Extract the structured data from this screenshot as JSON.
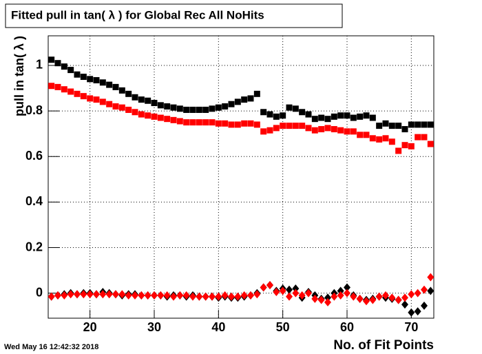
{
  "chart_data": {
    "type": "scatter",
    "title": "Fitted pull in tan( λ ) for Global Rec All NoHits",
    "x_label": "No. of Fit Points",
    "y_label": "pull in tan( λ )",
    "timestamp": "Wed May 16 12:42:32 2018",
    "x": [
      14,
      15,
      16,
      17,
      18,
      19,
      20,
      21,
      22,
      23,
      24,
      25,
      26,
      27,
      28,
      29,
      30,
      31,
      32,
      33,
      34,
      35,
      36,
      37,
      38,
      39,
      40,
      41,
      42,
      43,
      44,
      45,
      46,
      47,
      48,
      49,
      50,
      51,
      52,
      53,
      54,
      55,
      56,
      57,
      58,
      59,
      60,
      61,
      62,
      63,
      64,
      65,
      66,
      67,
      68,
      69,
      70,
      71,
      72,
      73
    ],
    "series": [
      {
        "color": "#000000",
        "marker": "square",
        "values": [
          1.025,
          1.01,
          0.995,
          0.98,
          0.96,
          0.95,
          0.94,
          0.935,
          0.925,
          0.915,
          0.905,
          0.89,
          0.875,
          0.86,
          0.85,
          0.845,
          0.835,
          0.825,
          0.82,
          0.815,
          0.81,
          0.805,
          0.805,
          0.805,
          0.805,
          0.81,
          0.815,
          0.82,
          0.83,
          0.84,
          0.85,
          0.855,
          0.875,
          0.795,
          0.785,
          0.775,
          0.78,
          0.815,
          0.81,
          0.795,
          0.785,
          0.765,
          0.77,
          0.765,
          0.775,
          0.78,
          0.78,
          0.77,
          0.775,
          0.78,
          0.77,
          0.735,
          0.745,
          0.735,
          0.735,
          0.72,
          0.74,
          0.74,
          0.74,
          0.74
        ]
      },
      {
        "color": "#ff0000",
        "marker": "square",
        "values": [
          0.91,
          0.905,
          0.895,
          0.885,
          0.875,
          0.865,
          0.855,
          0.85,
          0.84,
          0.83,
          0.82,
          0.815,
          0.805,
          0.795,
          0.785,
          0.78,
          0.775,
          0.77,
          0.765,
          0.76,
          0.755,
          0.75,
          0.75,
          0.75,
          0.75,
          0.75,
          0.745,
          0.745,
          0.74,
          0.74,
          0.745,
          0.745,
          0.74,
          0.71,
          0.715,
          0.725,
          0.735,
          0.735,
          0.735,
          0.735,
          0.725,
          0.715,
          0.72,
          0.725,
          0.72,
          0.715,
          0.71,
          0.71,
          0.695,
          0.695,
          0.68,
          0.675,
          0.68,
          0.665,
          0.625,
          0.65,
          0.645,
          0.685,
          0.685,
          0.655
        ]
      },
      {
        "color": "#000000",
        "marker": "diamond",
        "values": [
          -0.015,
          -0.01,
          -0.005,
          0,
          -0.005,
          0,
          0,
          -0.005,
          0.005,
          0,
          -0.005,
          -0.01,
          -0.005,
          -0.005,
          -0.01,
          -0.01,
          -0.01,
          -0.01,
          -0.015,
          -0.01,
          -0.01,
          -0.015,
          -0.01,
          -0.015,
          -0.015,
          -0.015,
          -0.02,
          -0.015,
          -0.02,
          -0.02,
          -0.015,
          -0.01,
          0,
          0.025,
          0.035,
          0.01,
          0.02,
          0.015,
          0.02,
          -0.02,
          0.005,
          -0.01,
          -0.025,
          -0.02,
          0,
          0.01,
          0.025,
          -0.01,
          -0.025,
          -0.03,
          -0.025,
          -0.015,
          -0.02,
          -0.025,
          -0.03,
          -0.05,
          -0.085,
          -0.08,
          -0.055,
          0.01
        ]
      },
      {
        "color": "#ff0000",
        "marker": "diamond",
        "values": [
          -0.015,
          -0.01,
          -0.01,
          -0.005,
          -0.005,
          -0.005,
          -0.005,
          -0.005,
          -0.005,
          -0.005,
          -0.005,
          -0.005,
          -0.01,
          -0.01,
          -0.01,
          -0.01,
          -0.01,
          -0.01,
          -0.01,
          -0.015,
          -0.01,
          -0.01,
          -0.015,
          -0.015,
          -0.015,
          -0.015,
          -0.015,
          -0.01,
          -0.015,
          -0.015,
          -0.01,
          -0.01,
          -0.005,
          0.025,
          0.035,
          0.005,
          0.01,
          -0.015,
          0,
          -0.01,
          0,
          -0.025,
          -0.03,
          -0.04,
          -0.015,
          -0.01,
          0,
          -0.015,
          -0.025,
          -0.035,
          -0.03,
          -0.015,
          -0.01,
          -0.02,
          -0.03,
          -0.02,
          -0.005,
          0,
          0.015,
          0.07
        ]
      }
    ],
    "xlim": [
      13.5,
      73.5
    ],
    "ylim": [
      -0.11,
      1.13
    ],
    "xticks": [
      20,
      30,
      40,
      50,
      60,
      70
    ],
    "yticks": [
      0,
      0.2,
      0.4,
      0.6,
      0.8,
      1
    ],
    "grid": true
  }
}
